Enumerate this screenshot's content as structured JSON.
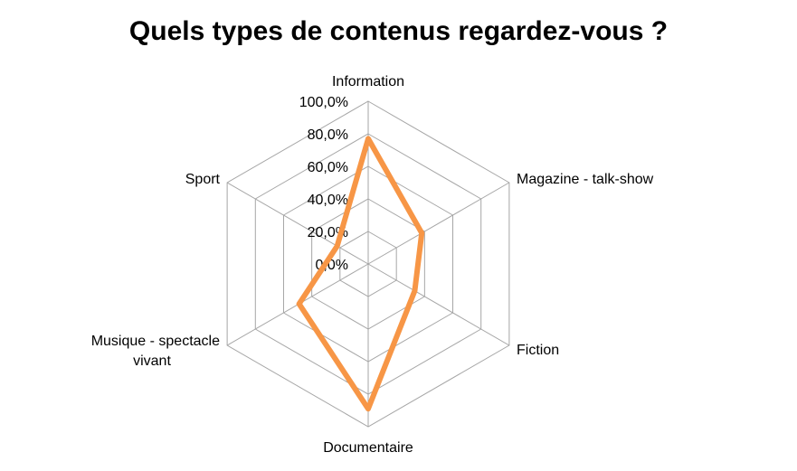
{
  "chart_data": {
    "type": "radar",
    "title": "Quels types de contenus regardez-vous ?",
    "categories": [
      "Information",
      "Magazine - talk-show",
      "Fiction",
      "Documentaire",
      "Musique - spectacle vivant",
      "Sport"
    ],
    "series": [
      {
        "values": [
          77,
          38,
          33,
          89,
          49,
          22
        ],
        "color": "#F79646"
      }
    ],
    "rlim": [
      0,
      100
    ],
    "tick_labels": [
      "0,0%",
      "20,0%",
      "40,0%",
      "60,0%",
      "80,0%",
      "100,0%"
    ],
    "ticks": [
      0,
      20,
      40,
      60,
      80,
      100
    ],
    "grid": true,
    "grid_color": "#A6A6A6",
    "legend": "none"
  }
}
